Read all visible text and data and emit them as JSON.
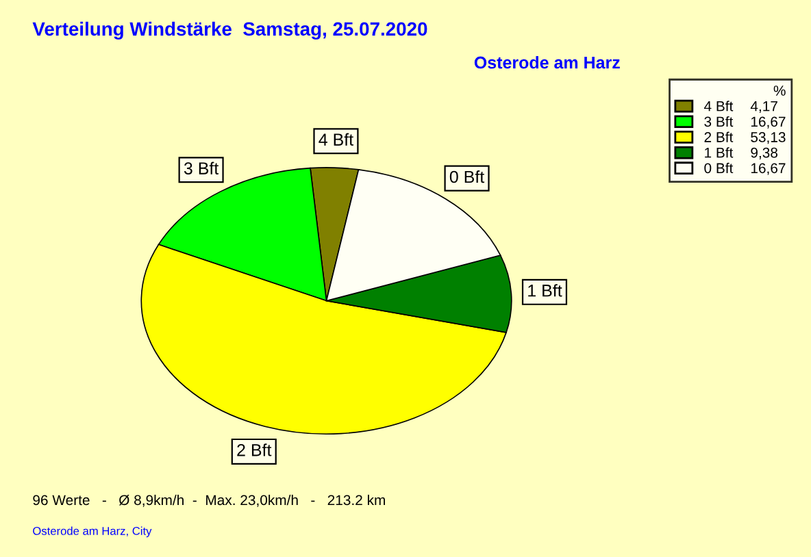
{
  "chart_data": {
    "type": "pie",
    "title": "Verteilung Windstärke  Samstag, 25.07.2020",
    "subtitle": "Osterode am Harz",
    "categories": [
      "4 Bft",
      "3 Bft",
      "2 Bft",
      "1 Bft",
      "0 Bft"
    ],
    "values": [
      4.17,
      16.67,
      53.13,
      9.38,
      16.67
    ],
    "value_labels": [
      "4,17",
      "16,67",
      "53,13",
      "9,38",
      "16,67"
    ],
    "colors": [
      "#808000",
      "#00ff00",
      "#ffff00",
      "#008000",
      "#fffff4"
    ],
    "legend": "top right",
    "legend_title": "%",
    "annotations": [
      "96 Werte   -   Ø 8,9km/h  -  Max. 23,0km/h   -   213.2 km",
      "Osterode am Harz, City"
    ]
  }
}
